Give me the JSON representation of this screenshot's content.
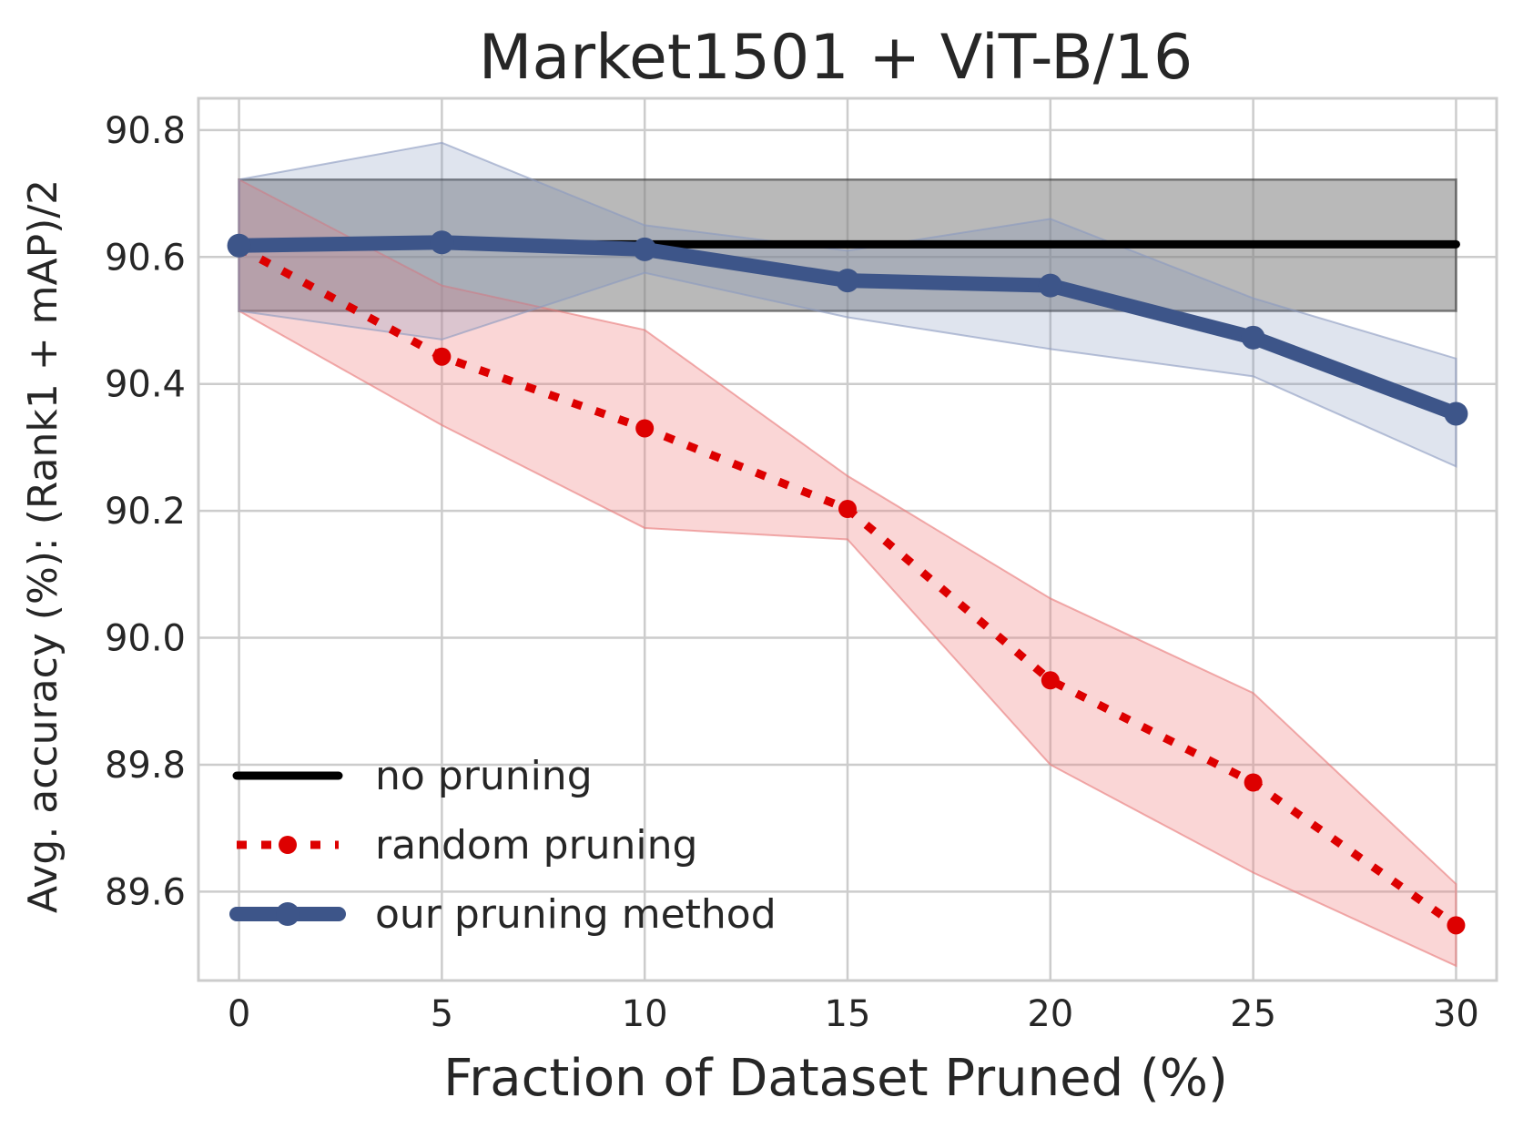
{
  "chart_data": {
    "type": "line",
    "title": "Market1501 + ViT-B/16",
    "xlabel": "Fraction of Dataset Pruned (%)",
    "ylabel": "Avg. accuracy (%): (Rank1 + mAP)/2",
    "xlim": [
      -1,
      31
    ],
    "ylim": [
      89.46,
      90.85
    ],
    "x_ticks": [
      0,
      5,
      10,
      15,
      20,
      25,
      30
    ],
    "y_ticks": [
      89.6,
      89.8,
      90.0,
      90.2,
      90.4,
      90.6,
      90.8
    ],
    "y_tick_labels": [
      "89.6",
      "89.8",
      "90.0",
      "90.2",
      "90.4",
      "90.6",
      "90.8"
    ],
    "grid": true,
    "legend_position": "lower-left",
    "series": [
      {
        "name": "no pruning",
        "color": "#000000",
        "x": [
          0,
          30
        ],
        "values": [
          90.62,
          90.62
        ],
        "band_lower": [
          90.515,
          90.515
        ],
        "band_upper": [
          90.722,
          90.722
        ],
        "band_color": "#808080"
      },
      {
        "name": "random pruning",
        "color": "#dd0000",
        "x": [
          0,
          5,
          10,
          15,
          20,
          25,
          30
        ],
        "values": [
          90.615,
          90.443,
          90.33,
          90.203,
          89.933,
          89.772,
          89.547
        ],
        "band_lower": [
          90.515,
          90.335,
          90.173,
          90.155,
          89.8,
          89.63,
          89.483
        ],
        "band_upper": [
          90.722,
          90.555,
          90.485,
          90.255,
          90.062,
          89.913,
          89.612
        ],
        "band_color": "#f08080"
      },
      {
        "name": "our pruning method",
        "color": "#3d5589",
        "x": [
          0,
          5,
          10,
          15,
          20,
          25,
          30
        ],
        "values": [
          90.618,
          90.623,
          90.612,
          90.563,
          90.555,
          90.473,
          90.353
        ],
        "band_lower": [
          90.515,
          90.47,
          90.575,
          90.505,
          90.455,
          90.412,
          90.27
        ],
        "band_upper": [
          90.722,
          90.78,
          90.65,
          90.61,
          90.66,
          90.535,
          90.44
        ],
        "band_color": "#7b8db8"
      }
    ]
  }
}
